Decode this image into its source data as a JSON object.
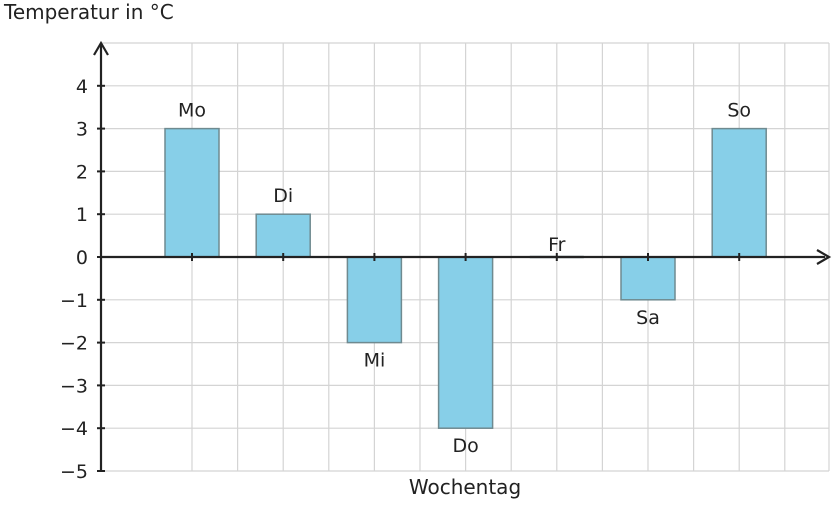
{
  "chart_data": {
    "type": "bar",
    "ylabel": "Temperatur in °C",
    "xlabel": "Wochentag",
    "categories": [
      "Mo",
      "Di",
      "Mi",
      "Do",
      "Fr",
      "Sa",
      "So"
    ],
    "values": [
      3,
      1,
      -2,
      -4,
      0,
      -1,
      3
    ],
    "ylim": [
      -5,
      5
    ],
    "yticks": [
      4,
      3,
      2,
      1,
      0,
      -1,
      -2,
      -3,
      -4,
      -5
    ],
    "ytick_labels": [
      "4",
      "3",
      "2",
      "1",
      "0",
      "−1",
      "−2",
      "−3",
      "−4",
      "−5"
    ],
    "grid": true,
    "bar_color": "#87cfe8",
    "bar_edge_color": "#6f8a90",
    "grid_color": "#d4d4d4",
    "axis_color": "#222222"
  }
}
